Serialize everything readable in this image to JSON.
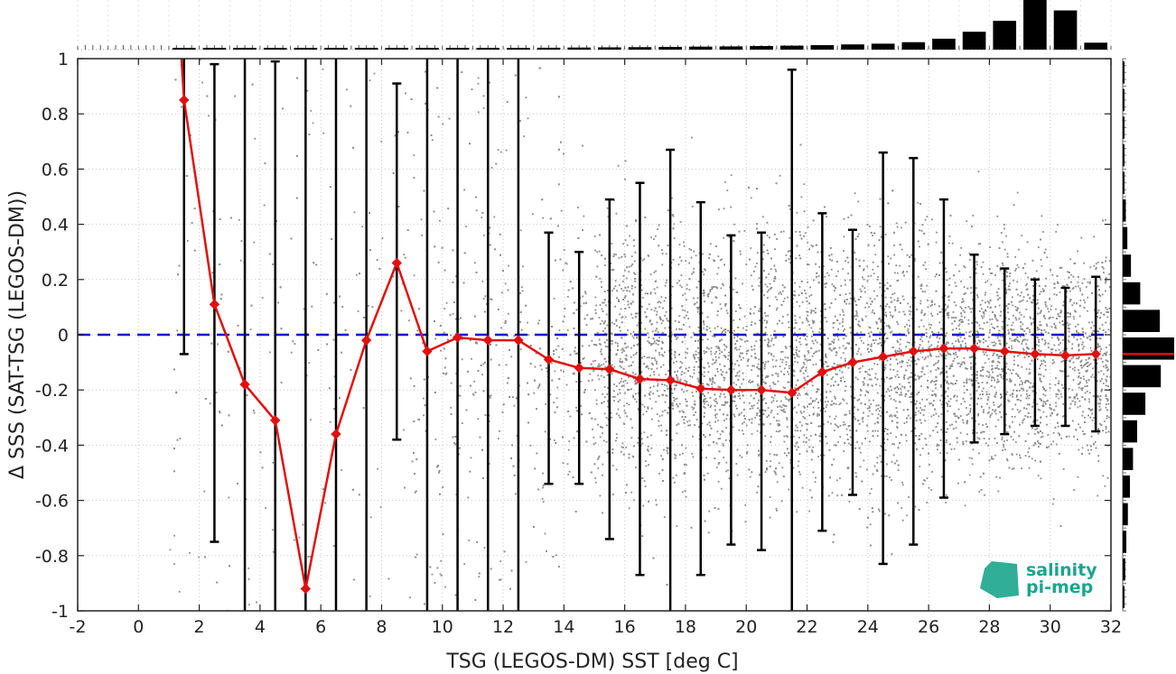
{
  "chart_data": {
    "type": "scatter",
    "xlabel": "TSG (LEGOS-DM) SST [deg C]",
    "ylabel": "Δ SSS (SAT-TSG (LEGOS-DM))",
    "xlim": [
      -2,
      32
    ],
    "ylim": [
      -1,
      1
    ],
    "xticks": [
      "-2",
      "0",
      "2",
      "4",
      "6",
      "8",
      "10",
      "12",
      "14",
      "16",
      "18",
      "20",
      "22",
      "24",
      "26",
      "28",
      "30",
      "32"
    ],
    "yticks": [
      "1",
      "0.8",
      "0.6",
      "0.4",
      "0.2",
      "0",
      "-0.2",
      "-0.4",
      "-0.6",
      "-0.8",
      "-1"
    ],
    "grid": true,
    "reference_line": {
      "y": 0,
      "color": "#1010d0",
      "style": "dashed"
    },
    "scatter_color": "#8c8c8c",
    "series": [
      {
        "kind": "binned-mean",
        "color": "#e01010",
        "x": [
          1.5,
          2.5,
          3.5,
          4.5,
          5.5,
          6.5,
          7.5,
          8.5,
          9.5,
          10.5,
          11.5,
          12.5,
          13.5,
          14.5,
          15.5,
          16.5,
          17.5,
          18.5,
          19.5,
          20.5,
          21.5,
          22.5,
          23.5,
          24.5,
          25.5,
          26.5,
          27.5,
          28.5,
          29.5,
          30.5,
          31.5
        ],
        "y": [
          0.85,
          0.11,
          -0.18,
          -0.31,
          -0.92,
          -0.36,
          -0.02,
          0.26,
          -0.06,
          -0.01,
          -0.02,
          -0.02,
          -0.09,
          -0.12,
          -0.125,
          -0.16,
          -0.165,
          -0.195,
          -0.2,
          -0.2,
          -0.21,
          -0.135,
          -0.1,
          -0.08,
          -0.06,
          -0.05,
          -0.05,
          -0.06,
          -0.07,
          -0.075,
          -0.07
        ]
      },
      {
        "kind": "error-bars",
        "color": "#000000",
        "x": [
          1.5,
          2.5,
          3.5,
          4.5,
          5.5,
          6.5,
          7.5,
          8.5,
          9.5,
          10.5,
          11.5,
          12.5,
          13.5,
          14.5,
          15.5,
          16.5,
          17.5,
          18.5,
          19.5,
          20.5,
          21.5,
          22.5,
          23.5,
          24.5,
          25.5,
          26.5,
          27.5,
          28.5,
          29.5,
          30.5,
          31.5
        ],
        "low": [
          -0.07,
          -0.75,
          -1.05,
          -1.05,
          -1.05,
          -1.05,
          -1.05,
          -0.38,
          -1.05,
          -1.05,
          -1.05,
          -1.05,
          -0.54,
          -0.54,
          -0.74,
          -0.87,
          -1.05,
          -0.87,
          -0.76,
          -0.78,
          -1.05,
          -0.71,
          -0.58,
          -0.83,
          -0.76,
          -0.59,
          -0.39,
          -0.36,
          -0.33,
          -0.33,
          -0.35
        ],
        "high": [
          1.05,
          0.98,
          1.05,
          0.99,
          1.05,
          1.05,
          1.05,
          0.91,
          1.05,
          1.05,
          1.05,
          1.05,
          0.37,
          0.3,
          0.49,
          0.55,
          0.67,
          0.48,
          0.36,
          0.37,
          0.96,
          0.44,
          0.38,
          0.66,
          0.64,
          0.49,
          0.29,
          0.24,
          0.2,
          0.17,
          0.21
        ]
      }
    ],
    "top_histogram": {
      "x": [
        1.5,
        2.5,
        3.5,
        4.5,
        5.5,
        6.5,
        7.5,
        8.5,
        9.5,
        10.5,
        11.5,
        12.5,
        13.5,
        14.5,
        15.5,
        16.5,
        17.5,
        18.5,
        19.5,
        20.5,
        21.5,
        22.5,
        23.5,
        24.5,
        25.5,
        26.5,
        27.5,
        28.5,
        29.5,
        30.5,
        31.5
      ],
      "counts": [
        0.002,
        0.003,
        0.003,
        0.004,
        0.005,
        0.006,
        0.008,
        0.01,
        0.014,
        0.02,
        0.026,
        0.032,
        0.038,
        0.042,
        0.046,
        0.05,
        0.055,
        0.06,
        0.065,
        0.072,
        0.08,
        0.09,
        0.105,
        0.12,
        0.15,
        0.22,
        0.36,
        0.58,
        1.0,
        0.79,
        0.14
      ]
    },
    "right_histogram": {
      "y": [
        0.95,
        0.85,
        0.75,
        0.65,
        0.55,
        0.45,
        0.35,
        0.25,
        0.15,
        0.05,
        -0.05,
        -0.15,
        -0.25,
        -0.35,
        -0.45,
        -0.55,
        -0.65,
        -0.75,
        -0.85,
        -0.95
      ],
      "counts": [
        0.01,
        0.012,
        0.015,
        0.02,
        0.035,
        0.06,
        0.09,
        0.16,
        0.34,
        0.72,
        1.0,
        0.74,
        0.44,
        0.28,
        0.2,
        0.14,
        0.1,
        0.07,
        0.05,
        0.03
      ],
      "mean_line": -0.07
    },
    "logo": {
      "line1": "salinity",
      "line2": "pi-mep"
    }
  }
}
